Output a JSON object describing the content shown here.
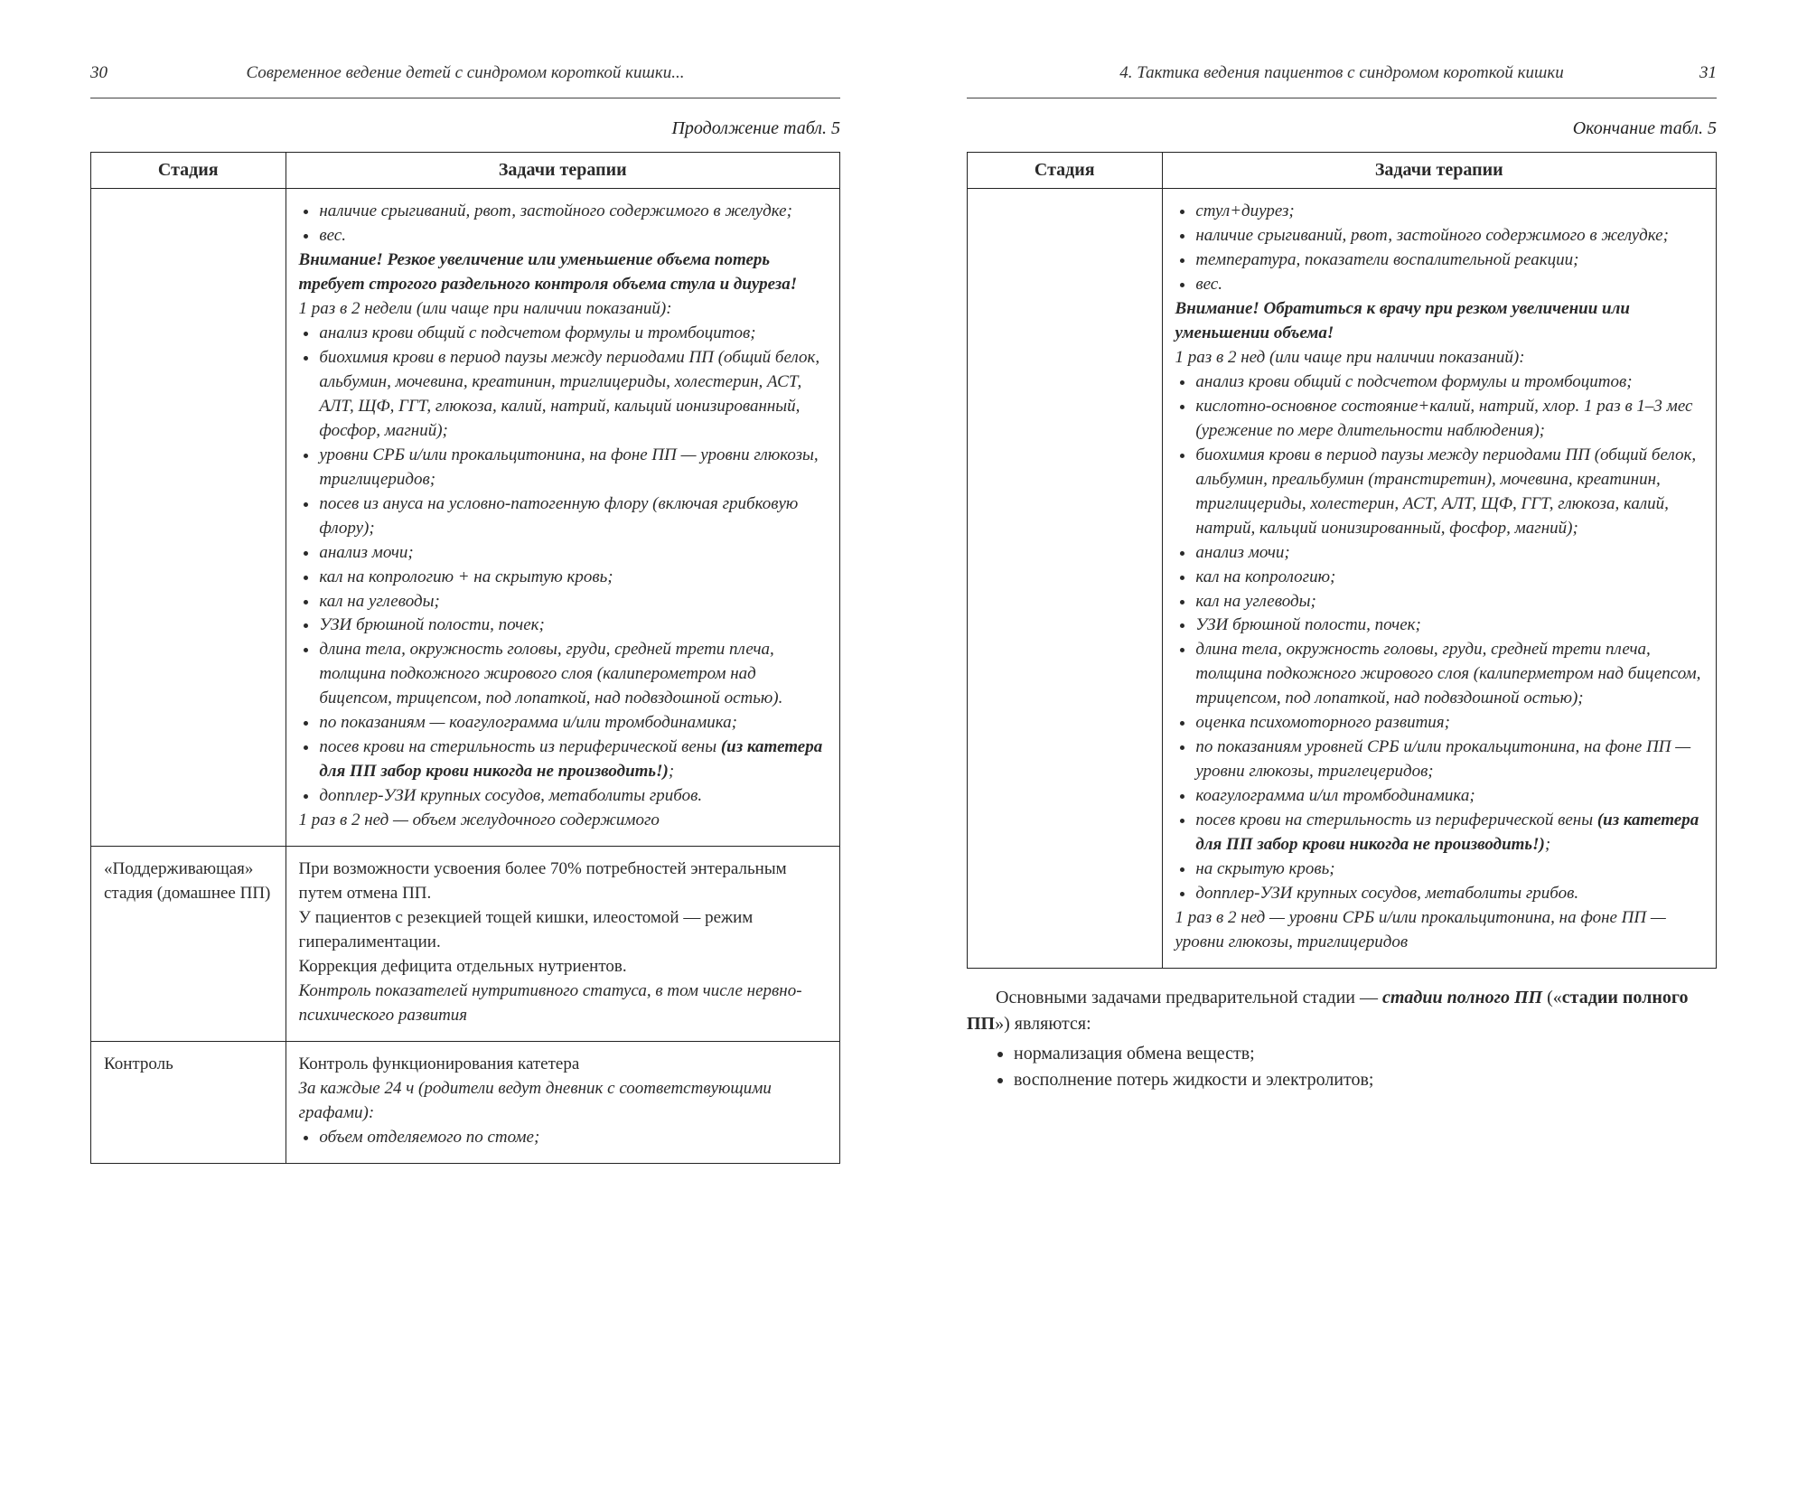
{
  "left": {
    "pageNumber": "30",
    "runningHead": "Современное ведение детей с синдромом короткой кишки...",
    "caption": "Продолжение табл. 5",
    "headers": {
      "col1": "Стадия",
      "col2": "Задачи терапии"
    },
    "row1": {
      "stage": "",
      "bullets_top": [
        "наличие срыгиваний, рвот, застойного содержимого в желудке;",
        "вес."
      ],
      "warn": "Внимание! Резкое увеличение или уменьшение объема потерь требует строгого раздельного контроля объема стула и диуреза!",
      "freq1": "1 раз в 2 недели (или чаще при наличии показаний):",
      "bullets_mid": [
        "анализ крови общий с подсчетом формулы и тромбоцитов;",
        "биохимия крови в период паузы между периодами ПП (общий белок, альбумин, мочевина, креатинин, триглицериды, холестерин, АСТ, АЛТ, ЩФ, ГГТ, глюкоза, калий, натрий, кальций ионизированный, фосфор, магний);",
        "уровни СРБ и/или прокальцитонина, на фоне ПП — уровни глюкозы, триглицеридов;",
        "посев из ануса на условно-патогенную флору (включая грибковую флору);",
        "анализ мочи;",
        "кал на копрологию + на скрытую кровь;",
        "кал на углеводы;",
        "УЗИ брюшной полости, почек;",
        "длина тела, окружность головы, груди, средней трети плеча, толщина подкожного жирового слоя (калиперометром над бицепсом, трицепсом, под лопаткой, над подвздошной остью).",
        "по показаниям — коагулограмма и/или тромбодинамика;"
      ],
      "cath1": "посев крови на стерильность из периферической вены",
      "cath2": "(из катетера для ПП забор крови никогда не производить!)",
      "cath_tail": ";",
      "doppler": "допплер-УЗИ крупных сосудов, метаболиты грибов.",
      "last": "1 раз в 2 нед — объем желудочного содержимого"
    },
    "row2": {
      "stage": "«Поддерживающая» стадия (домашнее ПП)",
      "paras": [
        "При возможности усвоения более 70% потребностей энтеральным путем отмена ПП.",
        "У пациентов с резекцией тощей кишки, илеостомой — режим гипералиментации.",
        "Коррекция дефицита отдельных нутриентов.",
        "Контроль показателей нутритивного статуса, в том числе нервно-психического развития"
      ]
    },
    "row3": {
      "stage": "Контроль",
      "line1": "Контроль функционирования катетера",
      "line2": "За каждые 24 ч (родители ведут дневник с соответствующими графами):",
      "bullet1": "объем отделяемого по стоме;"
    }
  },
  "right": {
    "pageNumber": "31",
    "runningHead": "4. Тактика ведения пациентов с синдромом короткой кишки",
    "caption": "Окончание табл. 5",
    "headers": {
      "col1": "Стадия",
      "col2": "Задачи терапии"
    },
    "row1": {
      "stage": "",
      "bullets_top": [
        "стул+диурез;",
        "наличие срыгиваний, рвот, застойного содержимого в желудке;",
        "температура, показатели воспалительной реакции;",
        "вес."
      ],
      "warn": "Внимание! Обратиться к врачу при резком увеличении или уменьшении объема!",
      "freq1": "1 раз в 2 нед (или чаще при наличии показаний):",
      "bullets_mid1": [
        "анализ крови общий с подсчетом формулы и тромбоцитов;",
        "кислотно-основное состояние+калий, натрий, хлор. 1 раз в 1–3 мес (урежение по мере длительности наблюдения);",
        "биохимия крови в период паузы между периодами ПП (общий белок, альбумин, преальбумин (транстиретин), мочевина, креатинин, триглицериды, холестерин, АСТ, АЛТ, ЩФ, ГГТ, глюкоза, калий, натрий, кальций ионизированный, фосфор, магний);",
        "анализ мочи;",
        "кал на копрологию;",
        "кал на углеводы;",
        "УЗИ брюшной полости, почек;",
        "длина тела, окружность головы, груди, средней трети плеча, толщина подкожного жирового слоя (калиперметром над бицепсом, трицепсом, под лопаткой, над подвздошной остью);",
        "оценка психомоторного развития;",
        "по показаниям уровней СРБ и/или прокальцитонина, на фоне ПП — уровни глюкозы, триглецеридов;",
        "коагулограмма и/ил тромбодинамика;"
      ],
      "cath1": "посев крови на стерильность из периферической вены",
      "cath2": "(из катетера для ПП забор крови никогда не производить!)",
      "cath_tail": ";",
      "bullets_mid2": [
        "на скрытую кровь;",
        "допплер-УЗИ крупных сосудов, метаболиты грибов."
      ],
      "last": "1 раз в 2 нед — уровни СРБ и/или прокальцитонина, на фоне ПП — уровни глюкозы, триглицеридов"
    },
    "bodyText": {
      "para_pre": "Основными задачами предварительной стадии — ",
      "para_boldital": "стадии полного ПП",
      "para_mid": " («",
      "para_bold2": "стадии полного ПП",
      "para_post": "») являются:",
      "bullets": [
        "нормализация обмена веществ;",
        "восполнение потерь жидкости и электролитов;"
      ]
    }
  }
}
